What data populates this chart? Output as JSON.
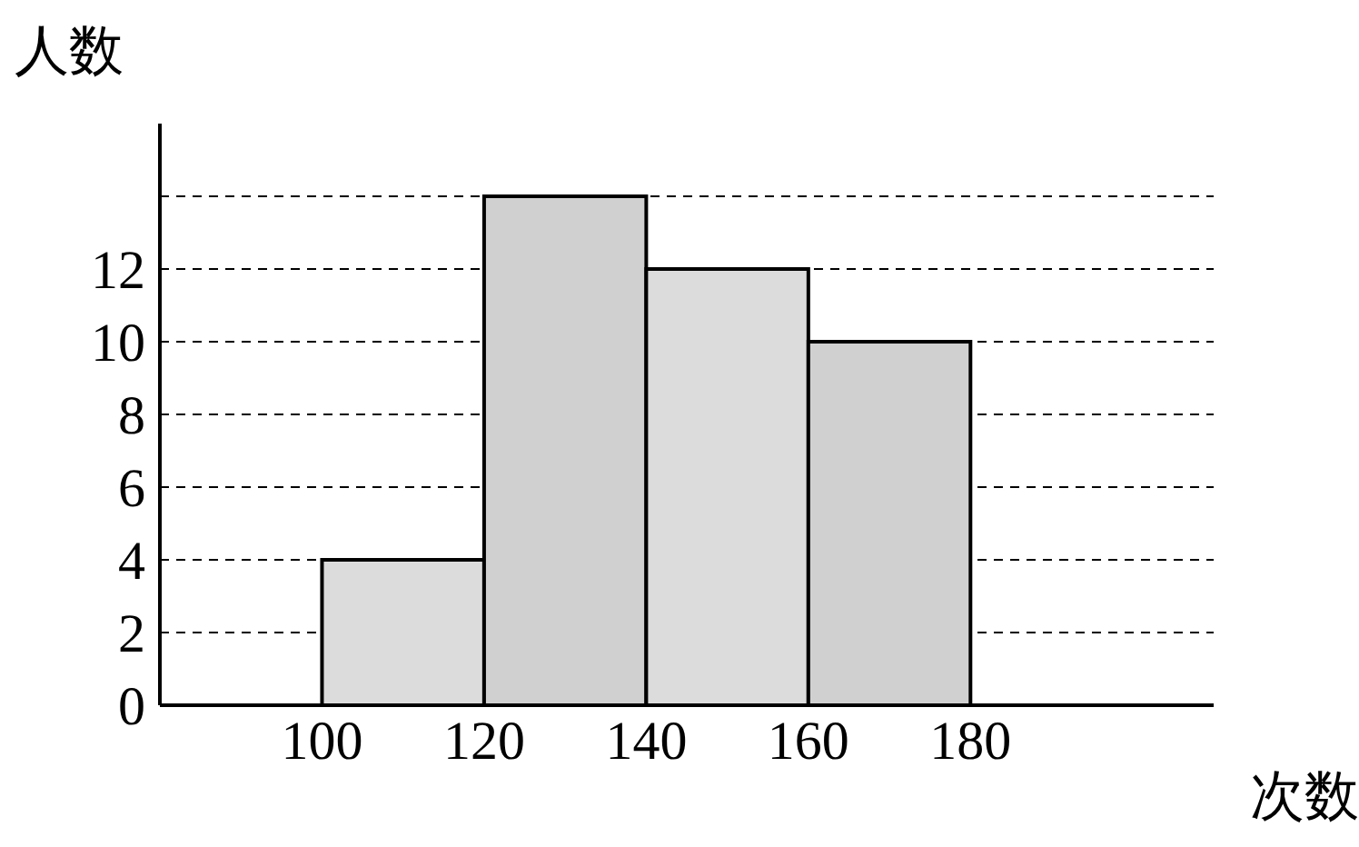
{
  "chart_data": {
    "type": "histogram",
    "xlabel": "次数",
    "ylabel": "人数",
    "bins": [
      100,
      120,
      140,
      160,
      180
    ],
    "values": [
      4,
      14,
      12,
      10
    ],
    "colors": [
      "#dcdcdc",
      "#d0d0d0",
      "#dcdcdc",
      "#d0d0d0"
    ],
    "xlim": [
      80,
      210
    ],
    "xticks": [
      100,
      120,
      140,
      160,
      180
    ],
    "ylim": [
      0,
      16
    ],
    "yticks": [
      0,
      2,
      4,
      6,
      8,
      10,
      12,
      {
        "value": 14,
        "label": null
      }
    ],
    "grid": "y"
  }
}
